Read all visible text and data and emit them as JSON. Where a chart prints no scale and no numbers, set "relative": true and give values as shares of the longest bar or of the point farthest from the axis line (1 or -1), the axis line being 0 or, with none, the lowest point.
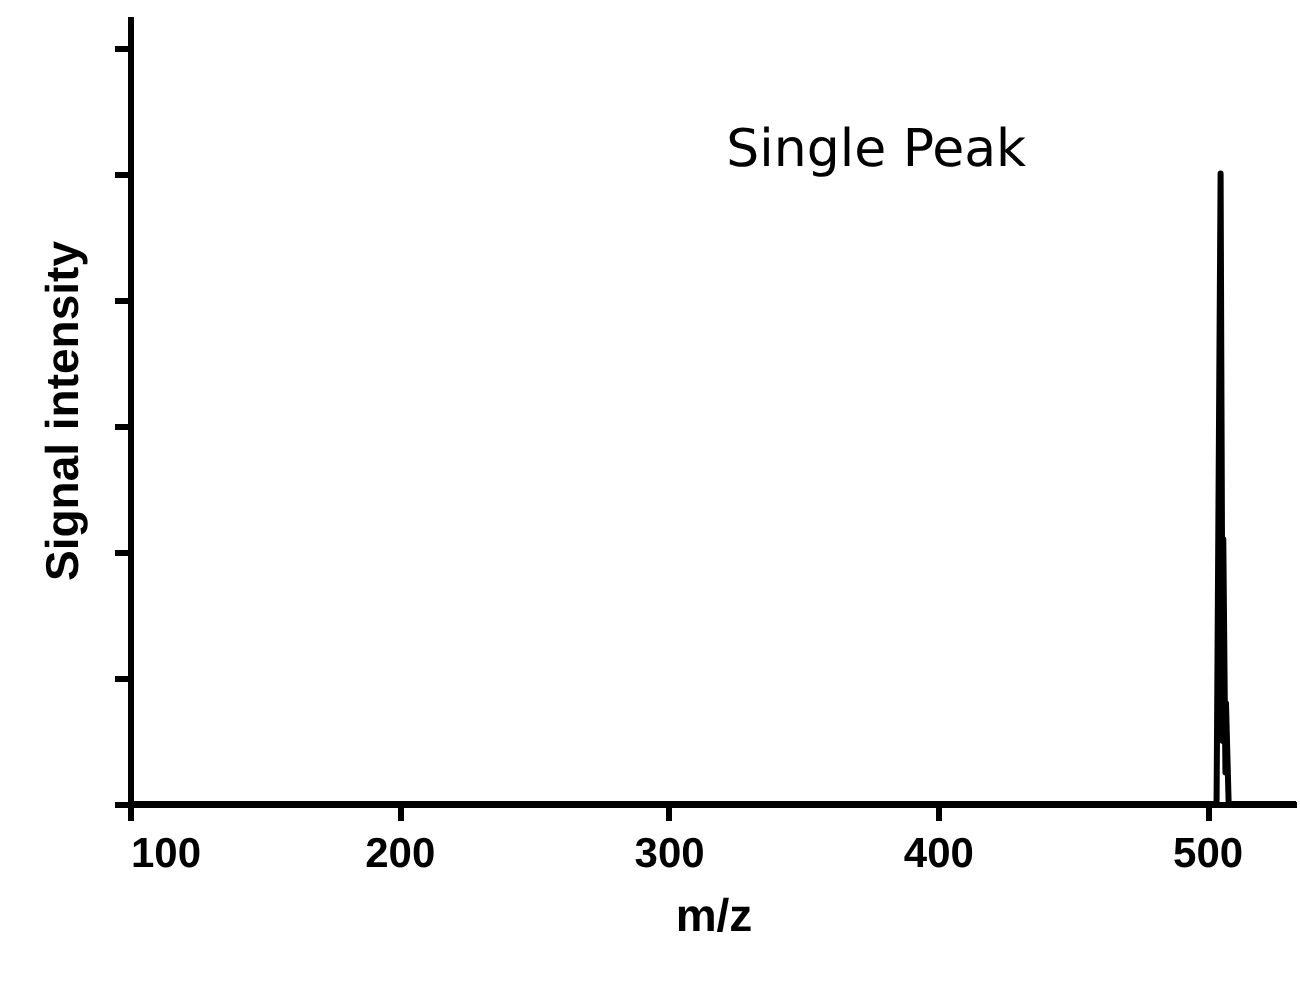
{
  "chart_data": {
    "type": "line",
    "relative": true,
    "xlabel": "m/z",
    "ylabel": "Signal intensity",
    "annotations": [
      "Single Peak"
    ],
    "xlim": [
      100,
      533
    ],
    "xticks": [
      100,
      200,
      300,
      400,
      500
    ],
    "series": [
      {
        "color": "#000000",
        "x": [
          100,
          503.5,
          505,
          505.8,
          506,
          506.8,
          507,
          508,
          533
        ],
        "values": [
          0,
          0,
          1,
          0.1,
          0.42,
          0.05,
          0.16,
          0,
          0
        ]
      }
    ],
    "grid": false,
    "marker": "none",
    "line_style": "solid"
  }
}
